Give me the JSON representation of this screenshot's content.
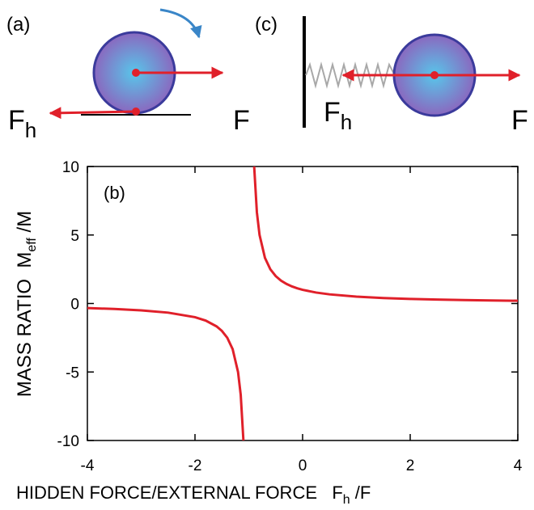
{
  "diagrams": {
    "a": {
      "label": "(a)",
      "force": "F",
      "hidden": "F",
      "hidden_sub": "h"
    },
    "c": {
      "label": "(c)",
      "force": "F",
      "hidden": "F",
      "hidden_sub": "h"
    }
  },
  "chart_data": {
    "type": "line",
    "panel_label": "(b)",
    "y_label": {
      "text": "MASS RATIO  M",
      "sub": "eff",
      "tail": " /M"
    },
    "x_label": {
      "text": "HIDDEN FORCE/EXTERNAL FORCE   F",
      "sub": "h",
      "tail": " /F"
    },
    "x": [
      -4,
      -3.5,
      -3,
      -2.5,
      -2,
      -1.8,
      -1.6,
      -1.5,
      -1.4,
      -1.3,
      -1.2,
      -1.15,
      -1.1,
      -1,
      -0.9,
      -0.85,
      -0.8,
      -0.7,
      -0.6,
      -0.5,
      -0.4,
      -0.3,
      -0.2,
      -0.1,
      0,
      0.25,
      0.5,
      1,
      1.5,
      2,
      2.5,
      3,
      3.5,
      4
    ],
    "series": [
      {
        "color": "#e0202a",
        "values": [
          -0.333,
          -0.4,
          -0.5,
          -0.667,
          -1,
          -1.25,
          -1.667,
          -2,
          -2.5,
          -3.333,
          -5,
          -6.667,
          -10,
          null,
          10,
          6.667,
          5,
          3.333,
          2.5,
          2,
          1.667,
          1.429,
          1.25,
          1.111,
          1,
          0.8,
          0.667,
          0.5,
          0.4,
          0.333,
          0.286,
          0.25,
          0.222,
          0.2
        ]
      }
    ],
    "xlim": [
      -4,
      4
    ],
    "ylim": [
      -10,
      10
    ],
    "xticks": [
      -4,
      -2,
      0,
      2,
      4
    ],
    "yticks": [
      -10,
      -5,
      0,
      5,
      10
    ]
  }
}
